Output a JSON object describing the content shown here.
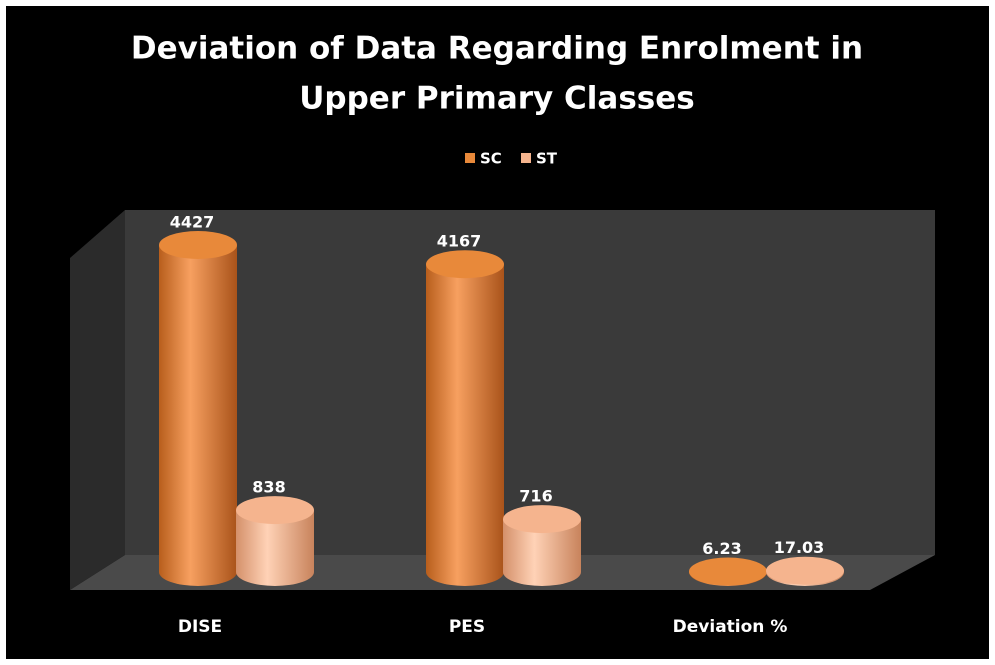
{
  "chart_data": {
    "type": "bar3d",
    "title_lines": [
      "Deviation of Data Regarding Enrolment in",
      "Upper Primary Classes"
    ],
    "categories": [
      "DISE",
      "PES",
      "Deviation %"
    ],
    "series": [
      {
        "name": "SC",
        "color": "#e8893a",
        "values": [
          4427,
          4167,
          6.23
        ]
      },
      {
        "name": "ST",
        "color": "#f5b48e",
        "values": [
          838,
          716,
          17.03
        ]
      }
    ],
    "legend": "top"
  }
}
